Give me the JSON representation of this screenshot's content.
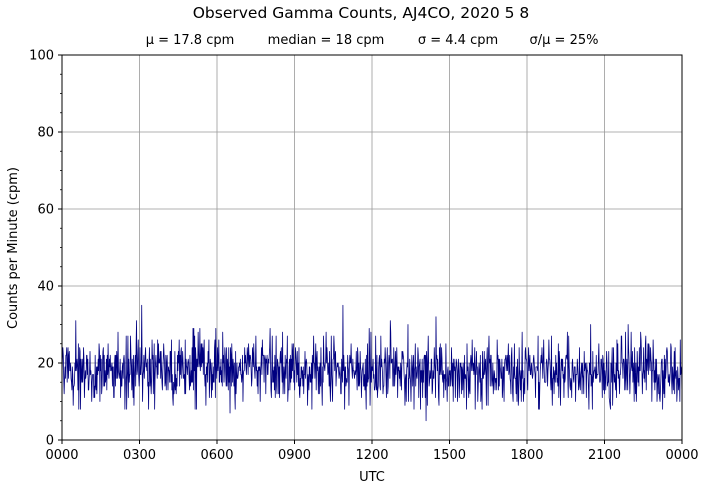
{
  "chart_data": {
    "type": "line",
    "title": "Observed Gamma Counts, AJ4CO, 2020 5 8",
    "subtitle": {
      "mean": "μ = 17.8 cpm",
      "median": "median = 18 cpm",
      "sigma": "σ = 4.4 cpm",
      "cv": "σ/μ = 25%"
    },
    "xlabel": "UTC",
    "ylabel": "Counts per Minute (cpm)",
    "xlim": [
      0,
      1440
    ],
    "ylim": [
      0,
      100
    ],
    "x_unit": "minutes since 0000 UTC",
    "x_ticks": [
      {
        "value": 0,
        "label": "0000"
      },
      {
        "value": 180,
        "label": "0300"
      },
      {
        "value": 360,
        "label": "0600"
      },
      {
        "value": 540,
        "label": "0900"
      },
      {
        "value": 720,
        "label": "1200"
      },
      {
        "value": 900,
        "label": "1500"
      },
      {
        "value": 1080,
        "label": "1800"
      },
      {
        "value": 1260,
        "label": "2100"
      },
      {
        "value": 1440,
        "label": "0000"
      }
    ],
    "y_ticks": [
      {
        "value": 0,
        "label": "0"
      },
      {
        "value": 20,
        "label": "20"
      },
      {
        "value": 40,
        "label": "40"
      },
      {
        "value": 60,
        "label": "60"
      },
      {
        "value": 80,
        "label": "80"
      },
      {
        "value": 100,
        "label": "100"
      }
    ],
    "grid": true,
    "series": [
      {
        "color": "#000080",
        "sampling": "one count per minute",
        "count": 1440,
        "mean": 17.8,
        "median": 18,
        "std": 4.4,
        "min": 5,
        "max": 35,
        "notable_points": [
          {
            "x": 185,
            "y": 35
          },
          {
            "x": 390,
            "y": 7
          },
          {
            "x": 652,
            "y": 35
          },
          {
            "x": 845,
            "y": 5
          },
          {
            "x": 868,
            "y": 32
          }
        ]
      }
    ]
  }
}
